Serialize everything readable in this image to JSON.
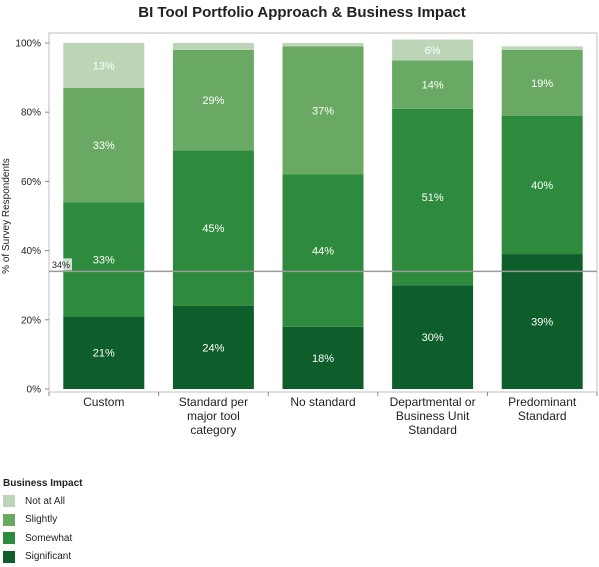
{
  "chart_data": {
    "type": "bar",
    "stacked": true,
    "title": "BI Tool Portfolio Approach & Business Impact",
    "xlabel": "",
    "ylabel": "% of Survey Respondents",
    "ylim": [
      0,
      100
    ],
    "yticks": [
      "0%",
      "20%",
      "40%",
      "60%",
      "80%",
      "100%"
    ],
    "categories": [
      [
        "Custom"
      ],
      [
        "Standard per",
        "major tool",
        "category"
      ],
      [
        "No standard"
      ],
      [
        "Departmental or",
        "Business Unit",
        "Standard"
      ],
      [
        "Predominant",
        "Standard"
      ]
    ],
    "series": [
      {
        "name": "Significant",
        "color": "#0d5e2b",
        "values": [
          21,
          24,
          18,
          30,
          39
        ]
      },
      {
        "name": "Somewhat",
        "color": "#2e8b3e",
        "values": [
          33,
          45,
          44,
          51,
          40
        ]
      },
      {
        "name": "Slightly",
        "color": "#6aa963",
        "values": [
          33,
          29,
          37,
          14,
          19
        ]
      },
      {
        "name": "Not at All",
        "color": "#bcd5b6",
        "values": [
          13,
          2,
          1,
          6,
          1
        ]
      }
    ],
    "data_labels": [
      [
        "21%",
        "24%",
        "18%",
        "30%",
        "39%"
      ],
      [
        "33%",
        "45%",
        "44%",
        "51%",
        "40%"
      ],
      [
        "33%",
        "29%",
        "37%",
        "14%",
        "19%"
      ],
      [
        "13%",
        "",
        "",
        "6%",
        ""
      ]
    ],
    "reference_line": {
      "value": 34,
      "label": "34%"
    },
    "legend": {
      "title": "Business Impact",
      "placement": "bottom-left"
    },
    "grid": false
  }
}
